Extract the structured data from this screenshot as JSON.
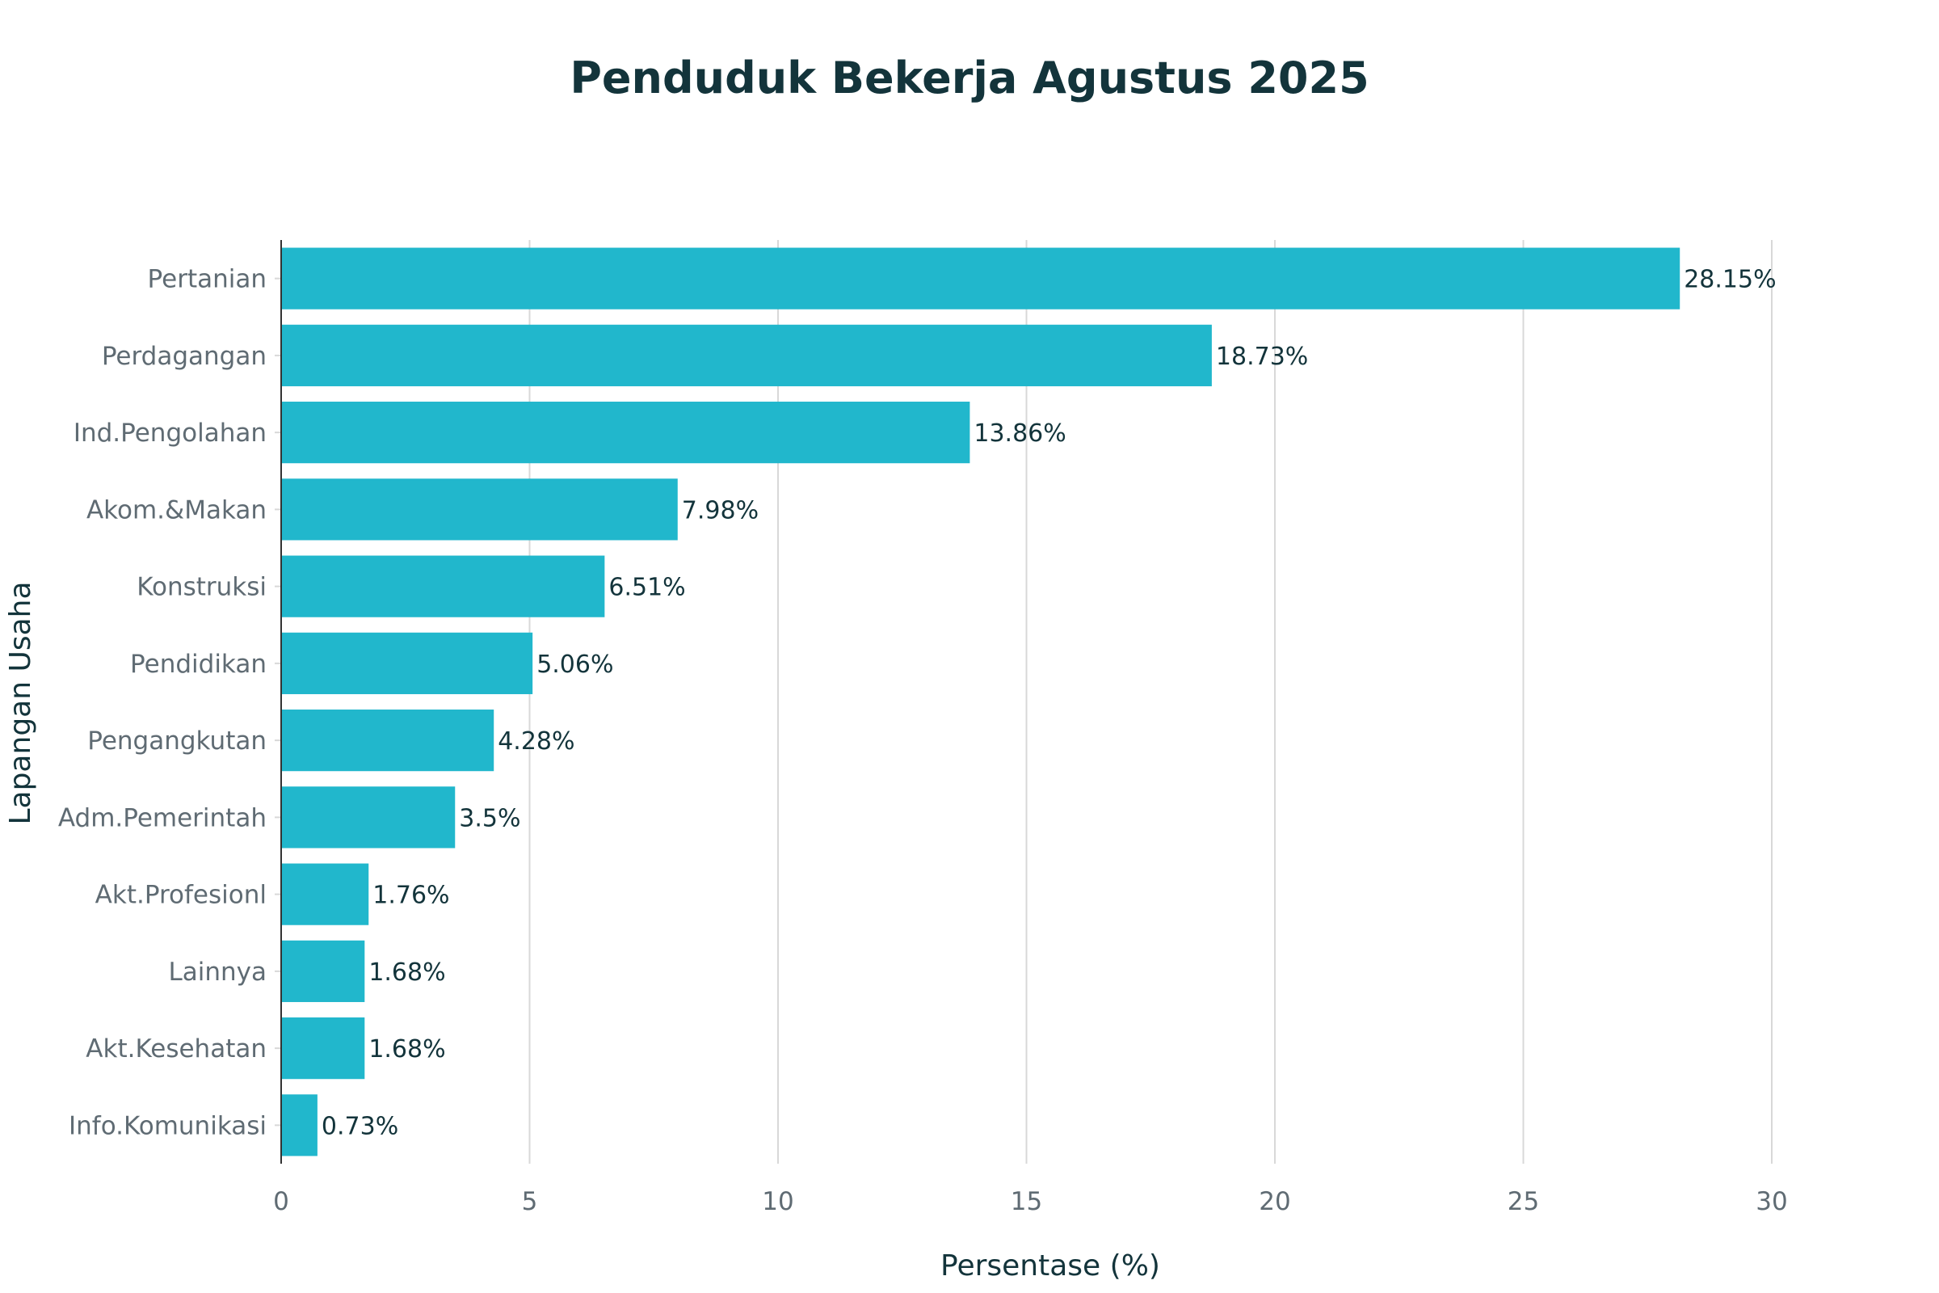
{
  "chart_data": {
    "type": "bar",
    "orientation": "horizontal",
    "title": "Penduduk Bekerja Agustus 2025",
    "xlabel": "Persentase (%)",
    "ylabel": "Lapangan Usaha",
    "xlim": [
      0,
      30
    ],
    "x_ticks": [
      "0",
      "5",
      "10",
      "15",
      "20",
      "25",
      "30"
    ],
    "categories": [
      "Pertanian",
      "Perdagangan",
      "Ind.Pengolahan",
      "Akom.&Makan",
      "Konstruksi",
      "Pendidikan",
      "Pengangkutan",
      "Adm.Pemerintah",
      "Akt.Profesionl",
      "Lainnya",
      "Akt.Kesehatan",
      "Info.Komunikasi"
    ],
    "values": [
      28.15,
      18.73,
      13.86,
      7.98,
      6.51,
      5.06,
      4.28,
      3.5,
      1.76,
      1.68,
      1.68,
      0.73
    ],
    "data_labels": [
      "28.15%",
      "18.73%",
      "13.86%",
      "7.98%",
      "6.51%",
      "5.06%",
      "4.28%",
      "3.5%",
      "1.76%",
      "1.68%",
      "1.68%",
      "0.73%"
    ],
    "bar_color": "#21b7cc",
    "grid": "vertical",
    "legend": "none"
  }
}
